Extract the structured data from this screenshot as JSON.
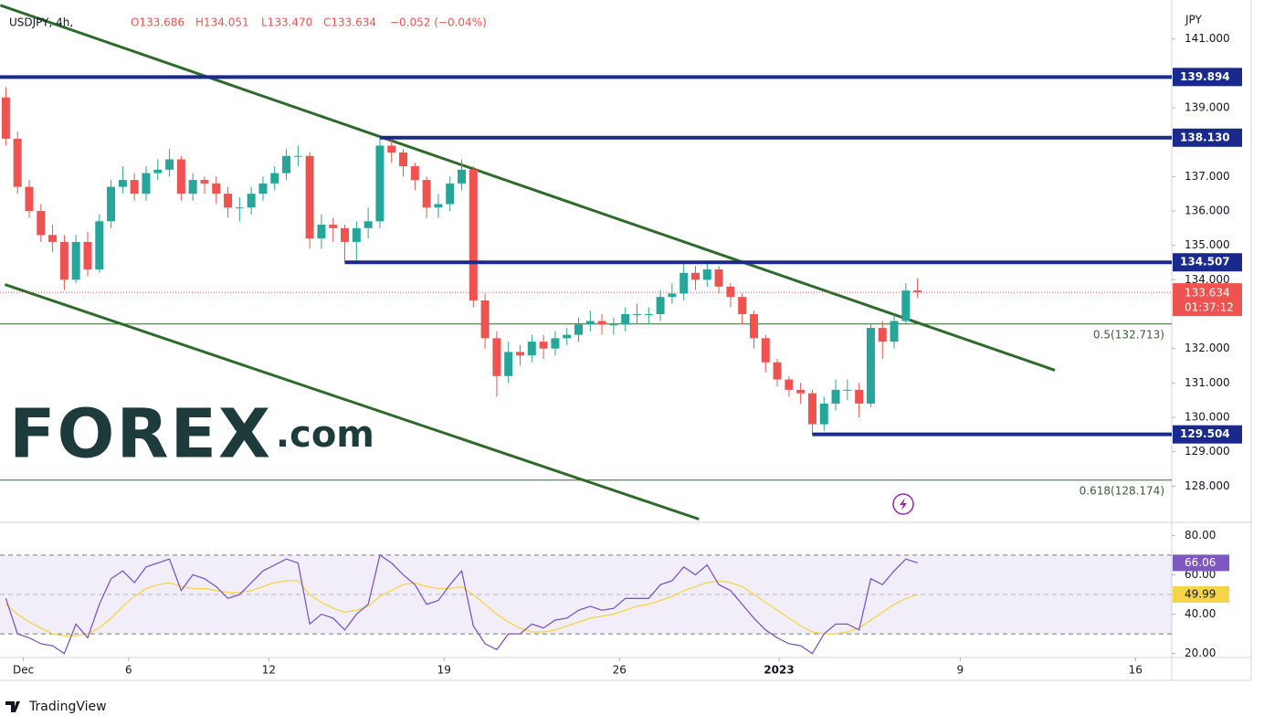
{
  "chart_data": {
    "type": "candlestick",
    "header": {
      "symbol": "USDJPY, 4h,",
      "ohlc": [
        "O133.686",
        "H134.051",
        "L133.470",
        "C133.634"
      ],
      "change": "−0.052 (−0.04%)"
    },
    "unit": "JPY",
    "watermark": {
      "brand": "FOREX",
      "suffix": ".com"
    },
    "footer": "TradingView",
    "up_color": "#26a69a",
    "down_color": "#ef5350",
    "x": [
      0,
      2,
      4,
      6,
      8,
      10,
      12,
      14,
      16,
      18,
      20,
      22,
      24,
      26,
      28,
      30,
      32,
      34,
      36,
      38,
      40,
      42,
      44,
      46,
      48,
      50,
      52,
      54,
      56,
      58,
      60,
      62,
      64,
      66,
      68,
      70,
      72,
      74,
      76,
      78,
      80,
      82,
      84,
      86,
      88,
      90,
      92,
      94,
      96,
      98,
      100,
      102,
      104,
      106,
      108,
      110,
      112,
      114,
      116,
      118,
      120,
      122,
      124,
      126,
      128,
      130,
      132,
      134,
      136,
      138,
      140,
      142,
      144,
      146,
      148,
      150,
      152,
      154,
      156
    ],
    "open": [
      139.3,
      138.1,
      136.7,
      136.0,
      135.3,
      135.1,
      134.0,
      135.1,
      134.3,
      135.7,
      136.7,
      136.9,
      136.5,
      137.1,
      137.2,
      137.5,
      136.5,
      136.9,
      136.8,
      136.5,
      136.1,
      136.1,
      136.5,
      136.8,
      137.1,
      137.6,
      137.6,
      135.2,
      135.6,
      135.5,
      135.1,
      135.5,
      135.7,
      137.9,
      137.7,
      137.3,
      136.9,
      136.1,
      136.2,
      136.8,
      137.2,
      133.4,
      132.3,
      131.2,
      131.9,
      131.8,
      132.2,
      132.0,
      132.3,
      132.4,
      132.7,
      132.8,
      132.7,
      132.7,
      133.0,
      133.0,
      133.0,
      133.5,
      133.6,
      134.2,
      134.0,
      134.3,
      133.8,
      133.5,
      133.0,
      132.3,
      131.6,
      131.1,
      130.8,
      130.7,
      129.8,
      130.4,
      130.8,
      130.8,
      130.4,
      132.6,
      132.2,
      132.8,
      133.686
    ],
    "high": [
      139.6,
      138.3,
      136.9,
      136.2,
      135.6,
      135.3,
      135.3,
      135.4,
      135.9,
      136.9,
      137.3,
      137.1,
      137.3,
      137.5,
      137.8,
      137.6,
      137.1,
      137.0,
      137.0,
      136.7,
      136.4,
      136.7,
      137.0,
      137.3,
      137.8,
      137.9,
      137.7,
      135.9,
      135.8,
      135.6,
      135.7,
      136.1,
      138.1,
      138.1,
      137.8,
      137.4,
      137.0,
      136.5,
      137.0,
      137.5,
      137.3,
      133.6,
      132.5,
      132.2,
      132.1,
      132.4,
      132.4,
      132.5,
      132.6,
      132.9,
      133.1,
      133.0,
      132.9,
      133.2,
      133.3,
      133.2,
      133.7,
      133.9,
      134.5,
      134.4,
      134.5,
      134.4,
      133.9,
      133.6,
      133.1,
      132.4,
      131.7,
      131.2,
      131.0,
      130.8,
      130.6,
      131.1,
      131.1,
      131.0,
      132.7,
      132.8,
      133.0,
      133.9,
      134.051
    ],
    "low": [
      137.9,
      136.5,
      135.8,
      135.1,
      134.8,
      133.7,
      133.9,
      134.1,
      134.2,
      135.5,
      136.5,
      136.3,
      136.3,
      136.9,
      137.0,
      136.3,
      136.3,
      136.5,
      136.2,
      135.8,
      135.7,
      135.9,
      136.3,
      136.6,
      136.9,
      137.3,
      134.9,
      134.9,
      135.1,
      134.5,
      134.5,
      135.2,
      135.5,
      137.4,
      137.0,
      136.6,
      135.8,
      135.8,
      136.0,
      136.6,
      133.2,
      132.0,
      130.6,
      131.0,
      131.5,
      131.6,
      131.7,
      131.8,
      132.1,
      132.2,
      132.5,
      132.4,
      132.4,
      132.5,
      132.7,
      132.7,
      132.8,
      133.3,
      133.4,
      133.7,
      133.8,
      133.6,
      133.2,
      132.7,
      132.0,
      131.3,
      130.9,
      130.6,
      130.4,
      129.5,
      129.6,
      130.2,
      130.5,
      130.0,
      130.3,
      131.7,
      132.0,
      132.7,
      133.47
    ],
    "close": [
      138.1,
      136.7,
      136.0,
      135.3,
      135.1,
      134.0,
      135.1,
      134.3,
      135.7,
      136.7,
      136.9,
      136.5,
      137.1,
      137.2,
      137.5,
      136.5,
      136.9,
      136.8,
      136.5,
      136.1,
      136.1,
      136.5,
      136.8,
      137.1,
      137.6,
      137.6,
      135.2,
      135.6,
      135.5,
      135.1,
      135.5,
      135.7,
      137.9,
      137.7,
      137.3,
      136.9,
      136.1,
      136.2,
      136.8,
      137.2,
      133.4,
      132.3,
      131.2,
      131.9,
      131.8,
      132.2,
      132.0,
      132.3,
      132.4,
      132.7,
      132.8,
      132.7,
      132.7,
      133.0,
      133.0,
      133.0,
      133.5,
      133.6,
      134.2,
      134.0,
      134.3,
      133.8,
      133.5,
      133.0,
      132.3,
      131.6,
      131.1,
      130.8,
      130.7,
      129.8,
      130.4,
      130.8,
      130.8,
      130.4,
      132.6,
      132.2,
      132.8,
      133.686,
      133.634
    ],
    "xlim": [
      -1,
      199.5
    ],
    "xticks": [
      {
        "value": 3,
        "label": "Dec"
      },
      {
        "value": 21,
        "label": "6"
      },
      {
        "value": 45,
        "label": "12"
      },
      {
        "value": 75,
        "label": "19"
      },
      {
        "value": 105,
        "label": "26"
      },
      {
        "value": 132.3,
        "label": "2023"
      },
      {
        "value": 163.3,
        "label": "9"
      },
      {
        "value": 193.3,
        "label": "16"
      }
    ],
    "ylim": [
      127,
      142
    ],
    "yticks": [
      {
        "value": 128,
        "label": "128.000"
      },
      {
        "value": 129,
        "label": "129.000"
      },
      {
        "value": 130,
        "label": "130.000"
      },
      {
        "value": 131,
        "label": "131.000"
      },
      {
        "value": 132,
        "label": "132.000"
      },
      {
        "value": 134,
        "label": "134.000"
      },
      {
        "value": 135,
        "label": "135.000"
      },
      {
        "value": 136,
        "label": "136.000"
      },
      {
        "value": 137,
        "label": "137.000"
      },
      {
        "value": 139,
        "label": "139.000"
      },
      {
        "value": 141,
        "label": "141.000"
      }
    ],
    "levels": [
      {
        "value": 139.894,
        "label": "139.894",
        "start": -1
      },
      {
        "value": 138.13,
        "label": "138.130",
        "start": 64
      },
      {
        "value": 134.507,
        "label": "134.507",
        "start": 58
      },
      {
        "value": 129.504,
        "label": "129.504",
        "start": 138
      }
    ],
    "level_color": "#1a2a8c",
    "fibs": [
      {
        "value": 132.713,
        "label": "0.5(132.713)"
      },
      {
        "value": 128.174,
        "label": "0.618(128.174)"
      }
    ],
    "trendlines": [
      {
        "x": [
          -0.94,
          179.5
        ],
        "y": [
          141.98,
          131.37
        ]
      },
      {
        "x": [
          -0.16,
          118.6
        ],
        "y": [
          133.86,
          127.04
        ]
      }
    ],
    "trend_color": "#2e6b2a",
    "last": {
      "value": 133.634,
      "label": "133.634",
      "countdown": "01:37:12"
    },
    "rsi": {
      "ylim": [
        18,
        82
      ],
      "yticks": [
        {
          "value": 20,
          "label": "20.00"
        },
        {
          "value": 40,
          "label": "40.00"
        },
        {
          "value": 60,
          "label": "60.00"
        },
        {
          "value": 80,
          "label": "80.00"
        }
      ],
      "band": [
        30,
        70
      ],
      "middle": 50,
      "color": "#7e57c2",
      "ma_color": "#f5d547",
      "values": [
        48,
        30,
        28,
        25,
        24,
        20,
        35,
        28,
        45,
        58,
        62,
        56,
        64,
        66,
        68,
        52,
        60,
        58,
        54,
        48,
        50,
        56,
        62,
        65,
        68,
        66,
        35,
        40,
        38,
        32,
        40,
        45,
        70,
        66,
        60,
        55,
        45,
        47,
        55,
        62,
        34,
        25,
        22,
        30,
        30,
        35,
        33,
        37,
        38,
        42,
        44,
        42,
        43,
        48,
        48,
        48,
        55,
        57,
        64,
        60,
        65,
        55,
        52,
        45,
        38,
        32,
        28,
        25,
        24,
        20,
        30,
        35,
        35,
        32,
        58,
        55,
        62,
        68,
        66.06
      ],
      "ma": [
        45,
        40,
        36,
        33,
        30,
        29,
        29,
        30,
        33,
        38,
        44,
        49,
        53,
        55,
        56,
        54,
        53,
        53,
        52,
        51,
        51,
        52,
        54,
        56,
        57,
        57,
        50,
        46,
        43,
        41,
        42,
        44,
        49,
        52,
        55,
        56,
        54,
        53,
        53,
        54,
        50,
        45,
        40,
        36,
        33,
        31,
        31,
        32,
        34,
        36,
        38,
        39,
        40,
        42,
        44,
        45,
        47,
        49,
        52,
        54,
        56,
        57,
        56,
        54,
        50,
        46,
        42,
        38,
        34,
        31,
        30,
        30,
        31,
        33,
        37,
        41,
        45,
        48,
        49.99
      ],
      "value_label": "66.06",
      "ma_label": "49.99"
    }
  }
}
